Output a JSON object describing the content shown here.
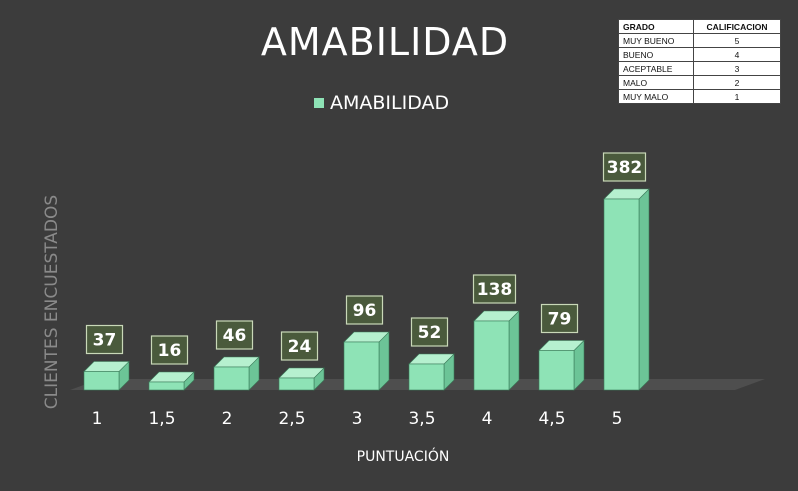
{
  "chart_data": {
    "type": "bar",
    "title": "AMABILIDAD",
    "legend": [
      {
        "label": "AMABILIDAD",
        "color": "#8ee3b6"
      }
    ],
    "legend_position": "top",
    "xlabel": "PUNTUACIÓN",
    "ylabel": "CLIENTES ENCUESTADOS",
    "categories": [
      "1",
      "1,5",
      "2",
      "2,5",
      "3",
      "3,5",
      "4",
      "4,5",
      "5"
    ],
    "series": [
      {
        "name": "AMABILIDAD",
        "values": [
          37,
          16,
          46,
          24,
          96,
          52,
          138,
          79,
          382
        ]
      }
    ],
    "ylim": [
      0,
      400
    ],
    "grid": false,
    "data_labels": [
      "37",
      "16",
      "46",
      "24",
      "96",
      "52",
      "138",
      "79",
      "382"
    ]
  },
  "grade_table": {
    "headers": [
      "GRADO",
      "CALIFICACION"
    ],
    "rows": [
      [
        "MUY BUENO",
        "5"
      ],
      [
        "BUENO",
        "4"
      ],
      [
        "ACEPTABLE",
        "3"
      ],
      [
        "MALO",
        "2"
      ],
      [
        "MUY MALO",
        "1"
      ]
    ]
  },
  "colors": {
    "background": "#3c3c3c",
    "bar_front": "#8ee3b6",
    "bar_side": "#6cc497",
    "bar_top": "#b6f0cf",
    "label_box": "#4a5a3c",
    "label_border": "#c9d8b8",
    "text": "#ffffff"
  }
}
